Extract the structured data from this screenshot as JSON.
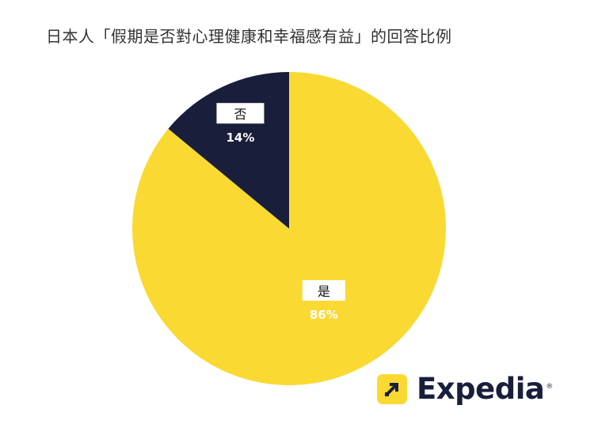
{
  "title": "日本人「假期是否對心理健康和幸福感有益」的回答比例",
  "chart_data": {
    "type": "pie",
    "title": "日本人「假期是否對心理健康和幸福感有益」的回答比例",
    "slices": [
      {
        "label": "是",
        "value": 86,
        "value_label": "86%",
        "color": "#fad932"
      },
      {
        "label": "否",
        "value": 14,
        "value_label": "14%",
        "color": "#191e3b"
      }
    ],
    "start": "12 o'clock",
    "direction": "clockwise"
  },
  "brand": {
    "name": "Expedia",
    "mark": "arrow-icon",
    "reg_symbol": "®",
    "colors": {
      "navy": "#191e3b",
      "yellow": "#fad932"
    }
  }
}
